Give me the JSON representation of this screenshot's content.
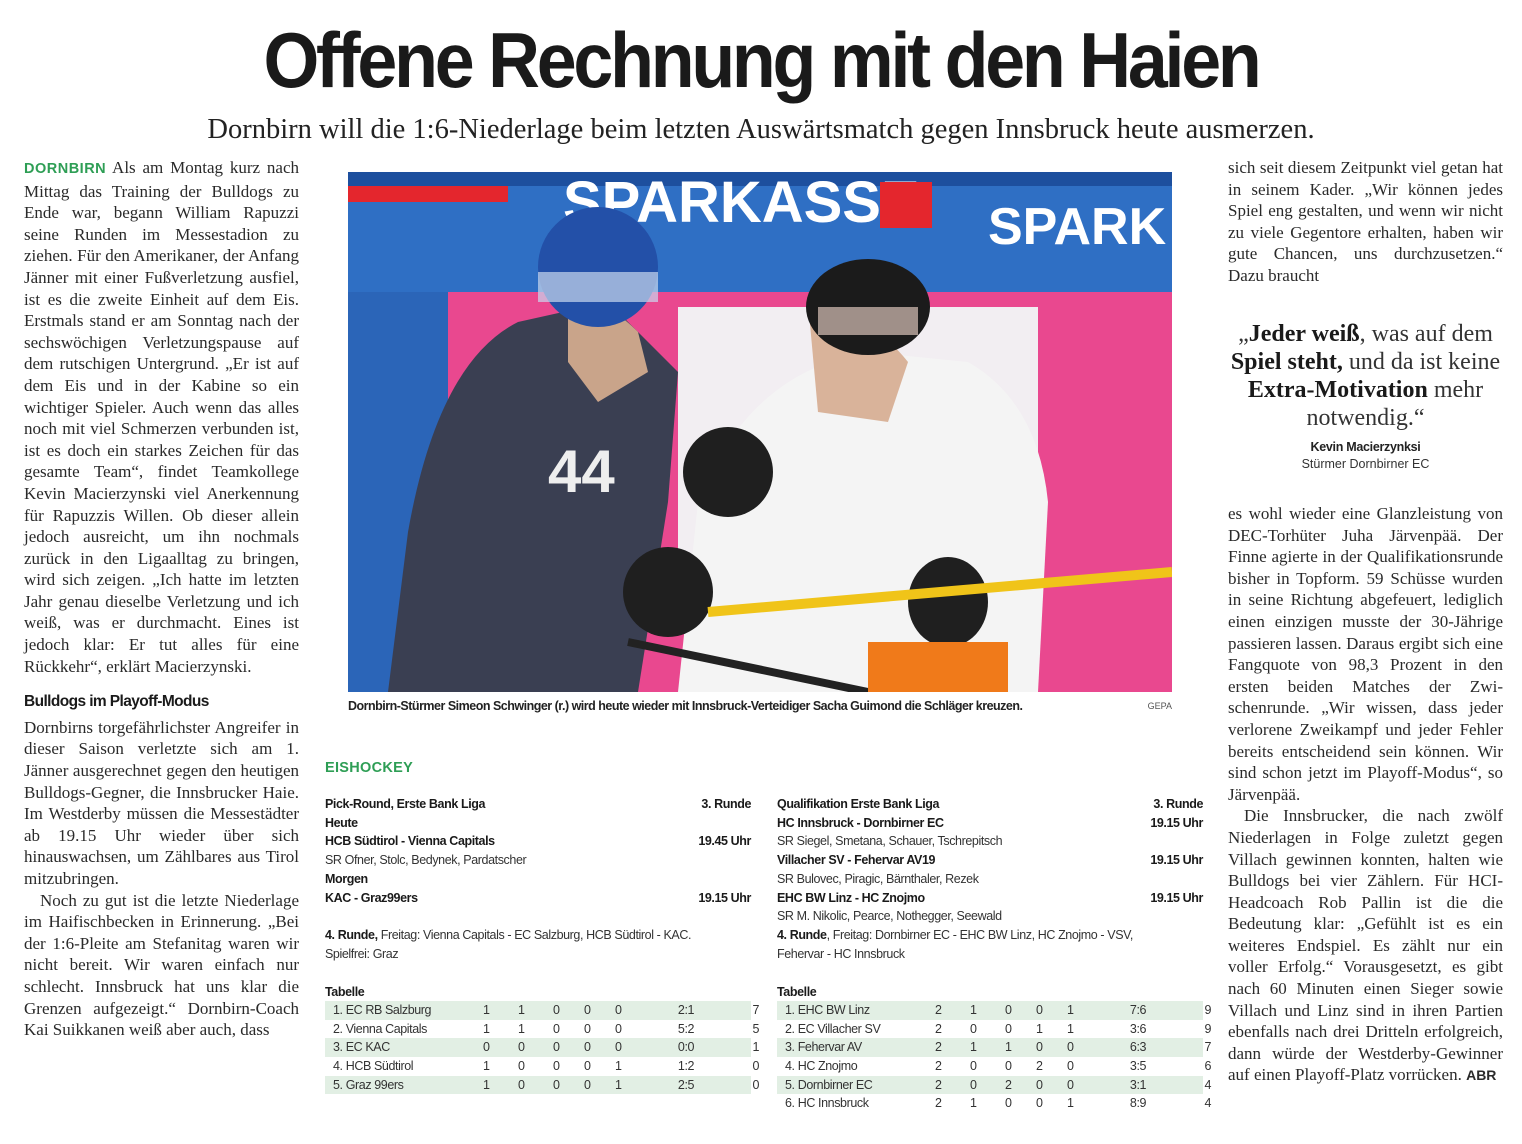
{
  "headline": "Offene Rechnung mit den Haien",
  "subheadline": "Dornbirn will die 1:6-Niederlage beim letzten Auswärtsmatch gegen Innsbruck heute ausmerzen.",
  "colors": {
    "accent_green": "#2e9e55",
    "table_zebra": "#e2efe4"
  },
  "left_column": {
    "dateline": "DORNBIRN",
    "p1": "Als am Montag kurz nach Mittag das Training der Bull­dogs zu Ende war, begann William Rapuzzi seine Runden im Messesta­dion zu ziehen. Für den Amerikaner, der Anfang Jänner mit einer Fuß­verletzung ausfiel, ist es die zweite Einheit auf dem Eis. Erstmals stand er am Sonntag nach der sechswö­chigen Verletzungspause auf dem rutschigen Untergrund. „Er ist auf dem Eis und in der Kabine so ein wichtiger Spieler. Auch wenn das alles noch mit viel Schmerzen ver­bunden ist, ist es doch ein starkes Zeichen für das gesamte Team“, findet Teamkollege Kevin Macier­zynski viel Anerkennung für Rapuz­zis Willen. Ob dieser allein jedoch ausreicht, um ihn nochmals zurück in den Ligaalltag zu bringen, wird sich zeigen. „Ich hatte im letzten Jahr genau dieselbe Verletzung und ich weiß, was er durchmacht. Eines ist jedoch klar: Er tut alles für eine Rückkehr“, erklärt Macierzynski.",
    "subhead": "Bulldogs im Playoff-Modus",
    "p2": "Dornbirns torgefährlichster Angrei­fer in dieser Saison verletzte sich am 1. Jänner ausgerechnet gegen den heutigen Bulldogs-Gegner, die Innsbrucker Haie. Im Westderby müssen die Messestädter ab 19.15 Uhr wieder über sich hinauswach­sen, um Zählbares aus Tirol mitzu­bringen.",
    "p3": "Noch zu gut ist die letzte Nie­derlage im Haifischbecken in Er­innerung. „Bei der 1:6-Pleite am Stefanitag waren wir nicht bereit. Wir waren einfach nur schlecht. Innsbruck hat uns klar die Grenzen aufgezeigt.“ Dornbirn-Coach Kai Suikkanen weiß aber auch, dass"
  },
  "photo": {
    "caption": "Dornbirn-Stürmer Simeon Schwinger (r.) wird heute wieder mit Innsbruck-Verteidiger Sacha Guimond die Schläger kreuzen.",
    "credit": "GEPA",
    "banner_text": "SPARKASSE",
    "jersey_number": "44"
  },
  "right_column": {
    "p1": "sich seit diesem Zeitpunkt viel ge­tan hat in seinem Kader. „Wir kön­nen jedes Spiel eng gestalten, und wenn wir nicht zu viele Gegentore erhalten, haben wir gute Chancen, uns durchzusetzen.“ Dazu braucht",
    "quote": {
      "open": "„",
      "b1": "Jeder weiß",
      "t1": ", was auf dem ",
      "b2": "Spiel steht,",
      "t2": " und da ist keine ",
      "b3": "Extra-Motiva­tion",
      "t3": " mehr notwendig.“",
      "author": "Kevin Macierzynksi",
      "role": "Stürmer Dornbirner EC"
    },
    "p2": "es wohl wieder eine Glanzleistung von DEC-Torhüter Juha Järvenpää. Der Finne agierte in der Qualifika­tionsrunde bisher in Topform. 59 Schüsse wurden in seine Richtung abgefeuert, lediglich einen einzi­gen musste der 30-Jährige passie­ren lassen. Daraus ergibt sich eine Fangquote von 98,3 Prozent in den ersten beiden Matches der Zwi­schenrunde. „Wir wissen, dass je­der verlorene Zweikampf und jeder Fehler bereits entscheidend sein können. Wir sind schon jetzt im Playoff-Modus“, so Järvenpää.",
    "p3": "Die Innsbrucker, die nach zwölf Niederlagen in Folge zuletzt gegen Villach gewinnen konnten, halten wie Bulldogs bei vier Zählern. Für HCI-Headcoach Rob Pallin ist die die Bedeutung klar: „Gefühlt ist es ein weiteres Endspiel. Es zählt nur ein voller Erfolg.“ Vorausgesetzt, es gibt nach 60 Minuten einen Sieger sowie Villach und Linz sind in ihren Partien ebenfalls nach drei Dritteln erfolgreich, dann würde der West­derby-Gewinner auf einen Playoff-Platz vorrücken.",
    "signature": "ABR"
  },
  "sports_box": {
    "label": "EISHOCKEY",
    "pick_round": {
      "league": "Pick-Round, Erste Bank Liga",
      "round": "3. Runde",
      "today": "Heute",
      "game1": "HCB Südtirol - Vienna Capitals",
      "game1_time": "19.45 Uhr",
      "game1_refs": "SR Ofner, Stolc, Bedynek, Pardatscher",
      "tomorrow": "Morgen",
      "game2": "KAC - Graz99ers",
      "game2_time": "19.15 Uhr",
      "next_label": "4. Runde,",
      "next_text": " Freitag: Vienna Capitals - EC Salzburg, HCB Südtirol - KAC.",
      "bye": "Spielfrei: Graz",
      "table_title": "Tabelle",
      "table": [
        [
          "1. EC RB Salzburg",
          "1",
          "1",
          "0",
          "0",
          "0",
          "2:1",
          "7"
        ],
        [
          "2. Vienna Capitals",
          "1",
          "1",
          "0",
          "0",
          "0",
          "5:2",
          "5"
        ],
        [
          "3. EC KAC",
          "0",
          "0",
          "0",
          "0",
          "0",
          "0:0",
          "1"
        ],
        [
          "4. HCB Südtirol",
          "1",
          "0",
          "0",
          "0",
          "1",
          "1:2",
          "0"
        ],
        [
          "5. Graz 99ers",
          "1",
          "0",
          "0",
          "0",
          "1",
          "2:5",
          "0"
        ]
      ]
    },
    "qualification": {
      "league": "Qualifikation Erste Bank Liga",
      "round": "3. Runde",
      "game1": "HC Innsbruck - Dornbirner EC",
      "game1_time": "19.15 Uhr",
      "game1_refs": "SR Siegel, Smetana, Schauer, Tschrepitsch",
      "game2": "Villacher SV - Fehervar AV19",
      "game2_time": "19.15 Uhr",
      "game2_refs": "SR Bulovec, Piragic, Bärnthaler, Rezek",
      "game3": "EHC BW Linz - HC Znojmo",
      "game3_time": "19.15 Uhr",
      "game3_refs": "SR M. Nikolic, Pearce, Nothegger, Seewald",
      "next_label": "4. Runde",
      "next_text": ", Freitag: Dornbirner EC - EHC BW Linz, HC Znojmo - VSV,",
      "next_text2": "Fehervar - HC Innsbruck",
      "table_title": "Tabelle",
      "table": [
        [
          "1. EHC BW Linz",
          "2",
          "1",
          "0",
          "0",
          "1",
          "7:6",
          "9"
        ],
        [
          "2. EC Villacher SV",
          "2",
          "0",
          "0",
          "1",
          "1",
          "3:6",
          "9"
        ],
        [
          "3. Fehervar AV",
          "2",
          "1",
          "1",
          "0",
          "0",
          "6:3",
          "7"
        ],
        [
          "4. HC Znojmo",
          "2",
          "0",
          "0",
          "2",
          "0",
          "3:5",
          "6"
        ],
        [
          "5. Dornbirner EC",
          "2",
          "0",
          "2",
          "0",
          "0",
          "3:1",
          "4"
        ],
        [
          "6. HC Innsbruck",
          "2",
          "1",
          "0",
          "0",
          "1",
          "8:9",
          "4"
        ]
      ]
    }
  }
}
